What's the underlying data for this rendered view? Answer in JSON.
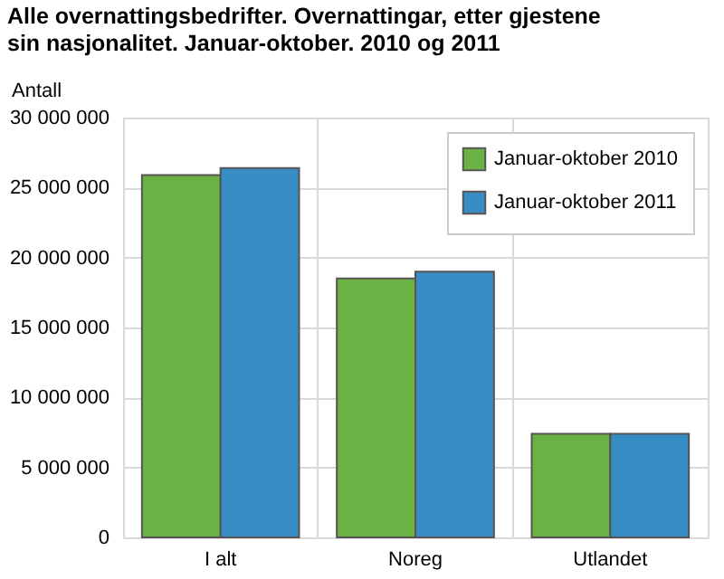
{
  "chart_data": {
    "type": "bar",
    "title": "Alle overnattingsbedrifter. Overnattingar, etter gjestene sin nasjonalitet. Januar-oktober. 2010 og 2011",
    "ylabel": "Antall",
    "categories": [
      "I alt",
      "Noreg",
      "Utlandet"
    ],
    "series": [
      {
        "name": "Januar-oktober 2010",
        "color": "#6ab244",
        "values": [
          25900000,
          18500000,
          7400000
        ]
      },
      {
        "name": "Januar-oktober 2011",
        "color": "#378dc3",
        "values": [
          26400000,
          19000000,
          7400000
        ]
      }
    ],
    "ylim": [
      0,
      30000000
    ],
    "yticks": [
      {
        "value": 0,
        "label": "0"
      },
      {
        "value": 5000000,
        "label": "5 000 000"
      },
      {
        "value": 10000000,
        "label": "10 000 000"
      },
      {
        "value": 15000000,
        "label": "15 000 000"
      },
      {
        "value": 20000000,
        "label": "20 000 000"
      },
      {
        "value": 25000000,
        "label": "25 000 000"
      },
      {
        "value": 30000000,
        "label": "30 000 000"
      }
    ],
    "grid": true,
    "legend": "top right"
  }
}
